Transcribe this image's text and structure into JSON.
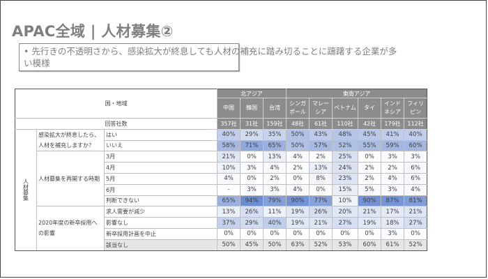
{
  "title": "APAC全域 | 人材募集②",
  "summary": "・ 先行きの不透明さから、感染拡大が終息しても人材の補充に踏み切ることに躊躇する企業が多い模様",
  "summary_line1": "•  先行きの不透明さから、感染拡大が終息しても人材の補充に踏み切ることに躊躇する企業が多",
  "summary_line2": "い模様",
  "table": {
    "header_region_label": "国・地域",
    "respondents_label": "回答社数",
    "section_label": "人材募集",
    "groups": [
      {
        "name": "北アジア",
        "colspan": 3
      },
      {
        "name": "東南アジア",
        "colspan": 6
      }
    ],
    "countries": [
      {
        "line1": "中国",
        "line2": ""
      },
      {
        "line1": "韓国",
        "line2": ""
      },
      {
        "line1": "台湾",
        "line2": ""
      },
      {
        "line1": "シンガ",
        "line2": "ポール"
      },
      {
        "line1": "マレー",
        "line2": "シア"
      },
      {
        "line1": "ベトナム",
        "line2": ""
      },
      {
        "line1": "タイ",
        "line2": ""
      },
      {
        "line1": "インド",
        "line2": "ネシア"
      },
      {
        "line1": "フィリ",
        "line2": "ピン"
      }
    ],
    "respondents": [
      "357社",
      "31社",
      "159社",
      "48社",
      "61社",
      "110社",
      "42社",
      "179社",
      "112社"
    ],
    "questions": [
      {
        "label": "感染拡大が終息したら、人材を補充しますか？",
        "rows": [
          {
            "option": "はい",
            "values": [
              "40%",
              "29%",
              "35%",
              "50%",
              "43%",
              "48%",
              "45%",
              "41%",
              "40%"
            ]
          },
          {
            "option": "いいえ",
            "values": [
              "58%",
              "71%",
              "65%",
              "50%",
              "57%",
              "52%",
              "55%",
              "59%",
              "60%"
            ]
          }
        ]
      },
      {
        "label": "人材募集を再開する時期",
        "rows": [
          {
            "option": "3月",
            "values": [
              "21%",
              "0%",
              "13%",
              "4%",
              "2%",
              "25%",
              "0%",
              "3%",
              "3%"
            ]
          },
          {
            "option": "4月",
            "values": [
              "10%",
              "3%",
              "4%",
              "2%",
              "13%",
              "24%",
              "2%",
              "2%",
              "6%"
            ]
          },
          {
            "option": "5月",
            "values": [
              "4%",
              "0%",
              "2%",
              "0%",
              "8%",
              "23%",
              "2%",
              "4%",
              "6%"
            ]
          },
          {
            "option": "6月",
            "values": [
              "-",
              "3%",
              "3%",
              "4%",
              "0%",
              "15%",
              "5%",
              "3%",
              "4%"
            ]
          },
          {
            "option": "判断できない",
            "values": [
              "65%",
              "94%",
              "79%",
              "90%",
              "77%",
              "10%",
              "90%",
              "87%",
              "81%"
            ]
          }
        ]
      },
      {
        "label": "2020年度の新卒採用への影響",
        "rows": [
          {
            "option": "求人需要が減少",
            "values": [
              "13%",
              "26%",
              "11%",
              "19%",
              "26%",
              "20%",
              "21%",
              "17%",
              "21%"
            ]
          },
          {
            "option": "影響なし",
            "values": [
              "37%",
              "29%",
              "40%",
              "19%",
              "21%",
              "27%",
              "19%",
              "18%",
              "27%"
            ]
          },
          {
            "option": "新卒採用計画を中止",
            "values": [
              "0%",
              "0%",
              "0%",
              "0%",
              "0%",
              "0%",
              "0%",
              "3%",
              "0%"
            ]
          },
          {
            "option": "該当なし",
            "values": [
              "50%",
              "45%",
              "50%",
              "63%",
              "52%",
              "53%",
              "60%",
              "61%",
              "52%"
            ]
          }
        ]
      }
    ],
    "colors": {
      "header_bg": "#8c8c8c",
      "header_text": "#ffffff",
      "na_row_bg": "#e6e6e6",
      "heat_max": "#5b7fcb",
      "heat_min": "#ffffff"
    }
  }
}
